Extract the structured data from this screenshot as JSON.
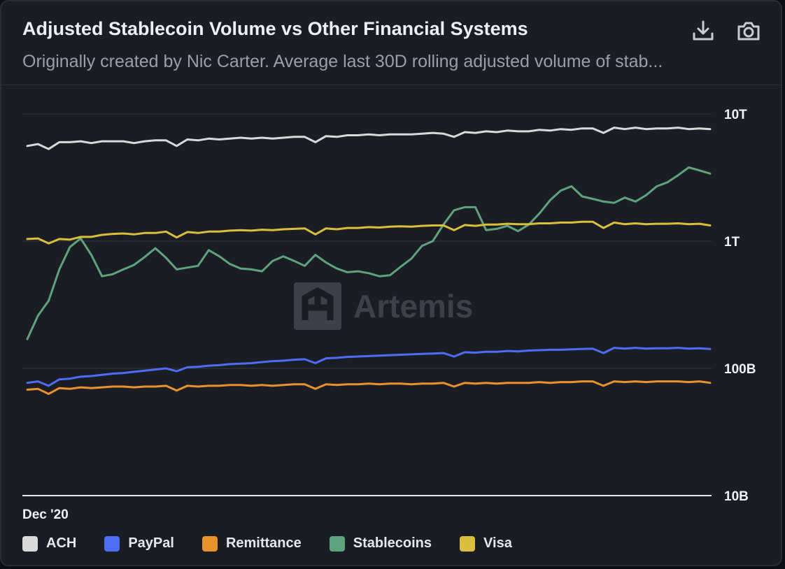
{
  "header": {
    "title": "Adjusted Stablecoin Volume vs Other Financial Systems",
    "subtitle": "Originally created by Nic Carter. Average last 30D rolling adjusted volume of stab...",
    "download_icon": "download-icon",
    "camera_icon": "camera-icon"
  },
  "watermark": {
    "text": "Artemis",
    "icon": "artemis-logo-icon"
  },
  "chart_data": {
    "type": "line",
    "yscale": "log",
    "ylim": [
      10000000000,
      10000000000000
    ],
    "y_ticks": [
      {
        "value": 10000000000000,
        "label": "10T"
      },
      {
        "value": 1000000000000,
        "label": "1T"
      },
      {
        "value": 100000000000,
        "label": "100B"
      },
      {
        "value": 10000000000,
        "label": "10B"
      }
    ],
    "x_tick_labels": [
      "Dec '20"
    ],
    "grid": true,
    "legend_position": "bottom-left",
    "series": [
      {
        "name": "ACH",
        "color": "#d9d9d9",
        "values": [
          5600000000000.0,
          5800000000000.0,
          5300000000000.0,
          6000000000000.0,
          6000000000000.0,
          6100000000000.0,
          5900000000000.0,
          6100000000000.0,
          6100000000000.0,
          6100000000000.0,
          5900000000000.0,
          6100000000000.0,
          6200000000000.0,
          6200000000000.0,
          5600000000000.0,
          6300000000000.0,
          6200000000000.0,
          6400000000000.0,
          6300000000000.0,
          6400000000000.0,
          6500000000000.0,
          6400000000000.0,
          6500000000000.0,
          6400000000000.0,
          6500000000000.0,
          6600000000000.0,
          6600000000000.0,
          6000000000000.0,
          6700000000000.0,
          6600000000000.0,
          6800000000000.0,
          6800000000000.0,
          6900000000000.0,
          6800000000000.0,
          6900000000000.0,
          6900000000000.0,
          6900000000000.0,
          7000000000000.0,
          7100000000000.0,
          7000000000000.0,
          6600000000000.0,
          7200000000000.0,
          7100000000000.0,
          7300000000000.0,
          7200000000000.0,
          7400000000000.0,
          7300000000000.0,
          7300000000000.0,
          7500000000000.0,
          7400000000000.0,
          7600000000000.0,
          7500000000000.0,
          7700000000000.0,
          7700000000000.0,
          7100000000000.0,
          7800000000000.0,
          7600000000000.0,
          7800000000000.0,
          7600000000000.0,
          7700000000000.0,
          7700000000000.0,
          7800000000000.0,
          7600000000000.0,
          7700000000000.0,
          7600000000000.0
        ]
      },
      {
        "name": "PayPal",
        "color": "#4e6cf5",
        "values": [
          77000000000.0,
          79000000000.0,
          73000000000.0,
          82000000000.0,
          83000000000.0,
          86000000000.0,
          87000000000.0,
          89000000000.0,
          91000000000.0,
          92000000000.0,
          94000000000.0,
          96000000000.0,
          98000000000.0,
          100000000000.0,
          95000000000.0,
          102000000000.0,
          103000000000.0,
          105000000000.0,
          106000000000.0,
          108000000000.0,
          109000000000.0,
          110000000000.0,
          112000000000.0,
          114000000000.0,
          115000000000.0,
          117000000000.0,
          118000000000.0,
          110000000000.0,
          120000000000.0,
          121000000000.0,
          123000000000.0,
          124000000000.0,
          125000000000.0,
          126000000000.0,
          127000000000.0,
          128000000000.0,
          129000000000.0,
          130000000000.0,
          131000000000.0,
          132000000000.0,
          124000000000.0,
          134000000000.0,
          133000000000.0,
          135000000000.0,
          135000000000.0,
          137000000000.0,
          136000000000.0,
          138000000000.0,
          139000000000.0,
          140000000000.0,
          140000000000.0,
          141000000000.0,
          142000000000.0,
          143000000000.0,
          132000000000.0,
          145000000000.0,
          143000000000.0,
          145000000000.0,
          143000000000.0,
          144000000000.0,
          144000000000.0,
          145000000000.0,
          143000000000.0,
          144000000000.0,
          142000000000.0
        ]
      },
      {
        "name": "Remittance",
        "color": "#e8922e",
        "values": [
          68000000000.0,
          69000000000.0,
          63000000000.0,
          70000000000.0,
          69000000000.0,
          71000000000.0,
          70000000000.0,
          71000000000.0,
          72000000000.0,
          72000000000.0,
          71000000000.0,
          72000000000.0,
          72000000000.0,
          73000000000.0,
          67000000000.0,
          73000000000.0,
          72000000000.0,
          73000000000.0,
          73000000000.0,
          74000000000.0,
          74000000000.0,
          73000000000.0,
          74000000000.0,
          73000000000.0,
          74000000000.0,
          75000000000.0,
          75000000000.0,
          69000000000.0,
          75000000000.0,
          74000000000.0,
          75000000000.0,
          75000000000.0,
          76000000000.0,
          75000000000.0,
          76000000000.0,
          76000000000.0,
          75000000000.0,
          76000000000.0,
          76000000000.0,
          77000000000.0,
          72000000000.0,
          77000000000.0,
          76000000000.0,
          77000000000.0,
          76000000000.0,
          77000000000.0,
          77000000000.0,
          77000000000.0,
          78000000000.0,
          77000000000.0,
          78000000000.0,
          78000000000.0,
          79000000000.0,
          79000000000.0,
          73000000000.0,
          79000000000.0,
          78000000000.0,
          79000000000.0,
          78000000000.0,
          79000000000.0,
          79000000000.0,
          79000000000.0,
          78000000000.0,
          79000000000.0,
          77000000000.0
        ]
      },
      {
        "name": "Stablecoins",
        "color": "#5fa37d",
        "values": [
          170000000000.0,
          260000000000.0,
          340000000000.0,
          600000000000.0,
          900000000000.0,
          1050000000000.0,
          780000000000.0,
          530000000000.0,
          550000000000.0,
          600000000000.0,
          650000000000.0,
          750000000000.0,
          880000000000.0,
          740000000000.0,
          600000000000.0,
          620000000000.0,
          640000000000.0,
          850000000000.0,
          760000000000.0,
          660000000000.0,
          610000000000.0,
          600000000000.0,
          580000000000.0,
          700000000000.0,
          760000000000.0,
          700000000000.0,
          640000000000.0,
          780000000000.0,
          680000000000.0,
          610000000000.0,
          570000000000.0,
          580000000000.0,
          560000000000.0,
          530000000000.0,
          540000000000.0,
          630000000000.0,
          730000000000.0,
          920000000000.0,
          1000000000000.0,
          1350000000000.0,
          1750000000000.0,
          1850000000000.0,
          1850000000000.0,
          1220000000000.0,
          1250000000000.0,
          1320000000000.0,
          1200000000000.0,
          1350000000000.0,
          1650000000000.0,
          2100000000000.0,
          2500000000000.0,
          2700000000000.0,
          2250000000000.0,
          2150000000000.0,
          2050000000000.0,
          2000000000000.0,
          2200000000000.0,
          2050000000000.0,
          2300000000000.0,
          2700000000000.0,
          2900000000000.0,
          3300000000000.0,
          3800000000000.0,
          3600000000000.0,
          3400000000000.0
        ]
      },
      {
        "name": "Visa",
        "color": "#d9bf3d",
        "values": [
          1040000000000.0,
          1050000000000.0,
          960000000000.0,
          1040000000000.0,
          1030000000000.0,
          1080000000000.0,
          1080000000000.0,
          1120000000000.0,
          1140000000000.0,
          1150000000000.0,
          1130000000000.0,
          1160000000000.0,
          1160000000000.0,
          1190000000000.0,
          1070000000000.0,
          1180000000000.0,
          1160000000000.0,
          1190000000000.0,
          1190000000000.0,
          1210000000000.0,
          1220000000000.0,
          1210000000000.0,
          1230000000000.0,
          1220000000000.0,
          1240000000000.0,
          1250000000000.0,
          1260000000000.0,
          1130000000000.0,
          1260000000000.0,
          1240000000000.0,
          1270000000000.0,
          1270000000000.0,
          1290000000000.0,
          1280000000000.0,
          1300000000000.0,
          1310000000000.0,
          1300000000000.0,
          1320000000000.0,
          1330000000000.0,
          1330000000000.0,
          1220000000000.0,
          1340000000000.0,
          1320000000000.0,
          1350000000000.0,
          1350000000000.0,
          1370000000000.0,
          1360000000000.0,
          1360000000000.0,
          1380000000000.0,
          1380000000000.0,
          1400000000000.0,
          1400000000000.0,
          1420000000000.0,
          1420000000000.0,
          1270000000000.0,
          1400000000000.0,
          1360000000000.0,
          1380000000000.0,
          1360000000000.0,
          1370000000000.0,
          1370000000000.0,
          1380000000000.0,
          1360000000000.0,
          1370000000000.0,
          1330000000000.0
        ]
      }
    ]
  }
}
